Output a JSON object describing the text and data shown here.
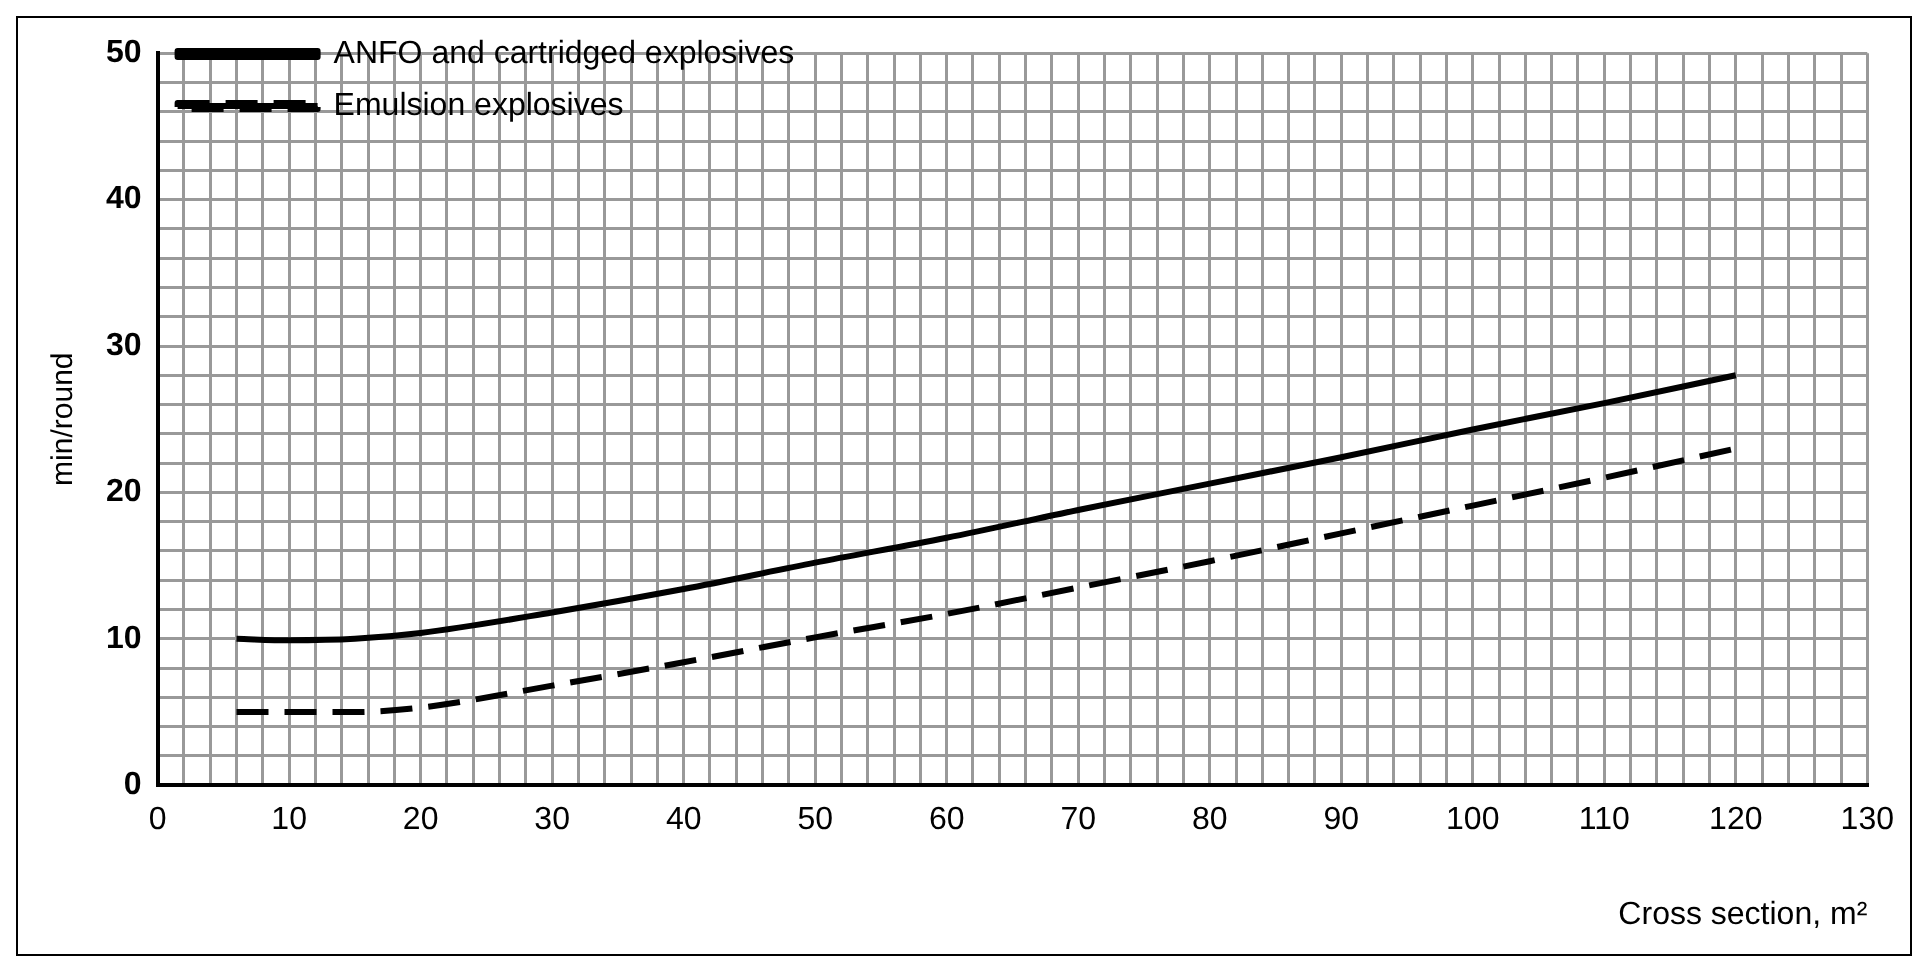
{
  "chart_data": {
    "type": "line",
    "xlabel": "Cross section, m²",
    "ylabel": "min/round",
    "xlim": [
      0,
      130
    ],
    "ylim": [
      0,
      50
    ],
    "xticks": [
      0,
      {
        "value": 2,
        "label": null
      },
      {
        "value": 4,
        "label": null
      },
      {
        "value": 6,
        "label": null
      },
      {
        "value": 8,
        "label": null
      },
      10,
      {
        "value": 12,
        "label": null
      },
      {
        "value": 14,
        "label": null
      },
      {
        "value": 16,
        "label": null
      },
      {
        "value": 18,
        "label": null
      },
      20,
      {
        "value": 22,
        "label": null
      },
      {
        "value": 24,
        "label": null
      },
      {
        "value": 26,
        "label": null
      },
      {
        "value": 28,
        "label": null
      },
      30,
      {
        "value": 32,
        "label": null
      },
      {
        "value": 34,
        "label": null
      },
      {
        "value": 36,
        "label": null
      },
      {
        "value": 38,
        "label": null
      },
      40,
      {
        "value": 42,
        "label": null
      },
      {
        "value": 44,
        "label": null
      },
      {
        "value": 46,
        "label": null
      },
      {
        "value": 48,
        "label": null
      },
      50,
      {
        "value": 52,
        "label": null
      },
      {
        "value": 54,
        "label": null
      },
      {
        "value": 56,
        "label": null
      },
      {
        "value": 58,
        "label": null
      },
      60,
      {
        "value": 62,
        "label": null
      },
      {
        "value": 64,
        "label": null
      },
      {
        "value": 66,
        "label": null
      },
      {
        "value": 68,
        "label": null
      },
      70,
      {
        "value": 72,
        "label": null
      },
      {
        "value": 74,
        "label": null
      },
      {
        "value": 76,
        "label": null
      },
      {
        "value": 78,
        "label": null
      },
      80,
      {
        "value": 82,
        "label": null
      },
      {
        "value": 84,
        "label": null
      },
      {
        "value": 86,
        "label": null
      },
      {
        "value": 88,
        "label": null
      },
      90,
      {
        "value": 92,
        "label": null
      },
      {
        "value": 94,
        "label": null
      },
      {
        "value": 96,
        "label": null
      },
      {
        "value": 98,
        "label": null
      },
      100,
      {
        "value": 102,
        "label": null
      },
      {
        "value": 104,
        "label": null
      },
      {
        "value": 106,
        "label": null
      },
      {
        "value": 108,
        "label": null
      },
      110,
      {
        "value": 112,
        "label": null
      },
      {
        "value": 114,
        "label": null
      },
      {
        "value": 116,
        "label": null
      },
      {
        "value": 118,
        "label": null
      },
      120,
      {
        "value": 122,
        "label": null
      },
      {
        "value": 124,
        "label": null
      },
      {
        "value": 126,
        "label": null
      },
      {
        "value": 128,
        "label": null
      },
      130
    ],
    "yticks": [
      0,
      {
        "value": 2,
        "label": null
      },
      {
        "value": 4,
        "label": null
      },
      {
        "value": 6,
        "label": null
      },
      {
        "value": 8,
        "label": null
      },
      10,
      {
        "value": 12,
        "label": null
      },
      {
        "value": 14,
        "label": null
      },
      {
        "value": 16,
        "label": null
      },
      {
        "value": 18,
        "label": null
      },
      20,
      {
        "value": 22,
        "label": null
      },
      {
        "value": 24,
        "label": null
      },
      {
        "value": 26,
        "label": null
      },
      {
        "value": 28,
        "label": null
      },
      30,
      {
        "value": 32,
        "label": null
      },
      {
        "value": 34,
        "label": null
      },
      {
        "value": 36,
        "label": null
      },
      {
        "value": 38,
        "label": null
      },
      40,
      {
        "value": 42,
        "label": null
      },
      {
        "value": 44,
        "label": null
      },
      {
        "value": 46,
        "label": null
      },
      {
        "value": 48,
        "label": null
      },
      50
    ],
    "x": [
      6,
      10,
      15,
      20,
      30,
      40,
      50,
      60,
      70,
      80,
      90,
      100,
      110,
      120
    ],
    "series": [
      {
        "name": "ANFO and cartridged explosives",
        "color": "#000000",
        "line_style": "solid",
        "values": [
          10,
          9.9,
          10,
          10.4,
          11.8,
          13.4,
          15.2,
          16.9,
          18.8,
          20.6,
          22.4,
          24.3,
          26.1,
          28
        ]
      },
      {
        "name": "Emulsion explosives",
        "color": "#000000",
        "line_style": "dashed",
        "values": [
          5,
          5,
          5,
          5.3,
          6.8,
          8.4,
          10.1,
          11.7,
          13.5,
          15.3,
          17.2,
          19.1,
          21,
          23
        ]
      }
    ],
    "grid": true,
    "legend": "top left",
    "marker": "none"
  }
}
